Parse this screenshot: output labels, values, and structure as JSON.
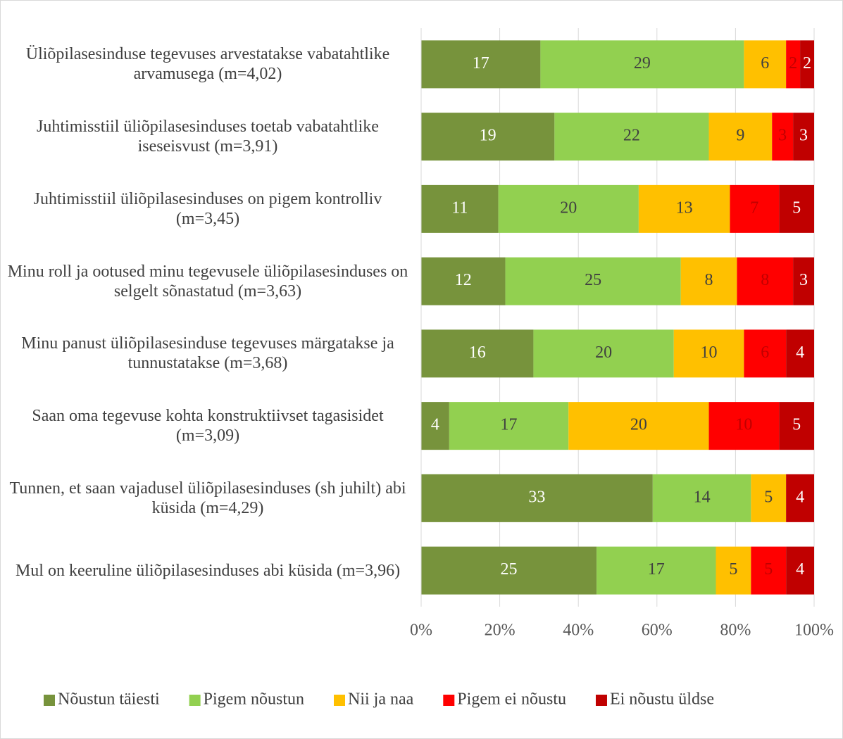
{
  "chart_data": {
    "type": "bar",
    "orientation": "horizontal",
    "stacked": "percent",
    "categories": [
      "Üliõpilasesinduse tegevuses arvestatakse vabatahtlike arvamusega (m=4,02)",
      "Juhtimisstiil üliõpilasesinduses toetab vabatahtlike iseseisvust (m=3,91)",
      "Juhtimisstiil üliõpilasesinduses on pigem kontrolliv (m=3,45)",
      "Minu roll ja ootused minu tegevusele üliõpilasesinduses on selgelt sõnastatud (m=3,63)",
      "Minu panust üliõpilasesinduse tegevuses märgatakse ja tunnustatakse (m=3,68)",
      "Saan oma tegevuse kohta konstruktiivset tagasisidet (m=3,09)",
      "Tunnen, et saan vajadusel üliõpilasesinduses (sh juhilt) abi küsida (m=4,29)",
      "Mul on keeruline üliõpilasesinduses abi küsida (m=3,96)"
    ],
    "series": [
      {
        "name": "Nõustun täiesti",
        "color": "#77933c",
        "label_color": "#ffffff",
        "values": [
          17,
          19,
          11,
          12,
          16,
          4,
          33,
          25
        ]
      },
      {
        "name": "Pigem nõustun",
        "color": "#92d050",
        "label_color": "#404040",
        "values": [
          29,
          22,
          20,
          25,
          20,
          17,
          14,
          17
        ]
      },
      {
        "name": "Nii ja naa",
        "color": "#ffc000",
        "label_color": "#404040",
        "values": [
          6,
          9,
          13,
          8,
          10,
          20,
          5,
          5
        ]
      },
      {
        "name": "Pigem ei nõustu",
        "color": "#ff0000",
        "label_color": "#c00000",
        "values": [
          2,
          3,
          7,
          8,
          6,
          10,
          null,
          5
        ]
      },
      {
        "name": "Ei nõustu üldse",
        "color": "#c00000",
        "label_color": "#ffffff",
        "values": [
          2,
          3,
          5,
          3,
          4,
          5,
          4,
          4
        ]
      }
    ],
    "xlim": [
      0,
      100
    ],
    "xticks": [
      {
        "value": 0,
        "label": "0%"
      },
      {
        "value": 20,
        "label": "20%"
      },
      {
        "value": 40,
        "label": "40%"
      },
      {
        "value": 60,
        "label": "60%"
      },
      {
        "value": 80,
        "label": "80%"
      },
      {
        "value": 100,
        "label": "100%"
      }
    ],
    "grid": true,
    "legend": "bottom"
  }
}
